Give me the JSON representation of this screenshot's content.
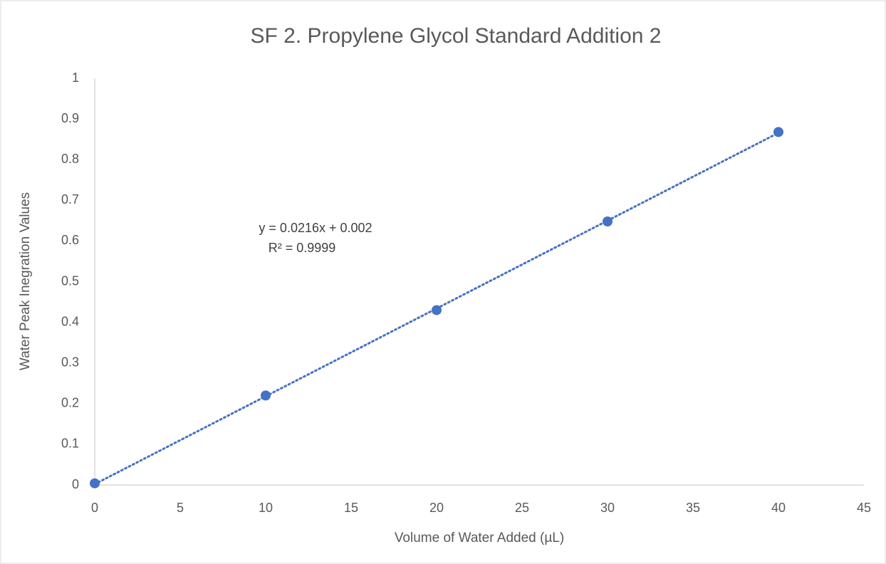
{
  "chart_data": {
    "type": "scatter",
    "title": "SF 2. Propylene Glycol Standard Addition 2",
    "x_label": "Volume of Water Added (µL)",
    "y_label": "Water Peak Inegration Values",
    "annotations": [
      "y = 0.0216x + 0.002",
      "R² = 0.9999"
    ],
    "series": [
      {
        "color": "#4472c4",
        "x": [
          0,
          10,
          20,
          30,
          40
        ],
        "values": [
          0.004,
          0.22,
          0.43,
          0.648,
          0.868
        ]
      }
    ],
    "trendline": {
      "slope": 0.0216,
      "intercept": 0.002,
      "style": "dotted"
    },
    "xlim": [
      0,
      45
    ],
    "xticks": [
      0,
      5,
      10,
      15,
      20,
      25,
      30,
      35,
      40,
      45
    ],
    "ylim": [
      0,
      1
    ],
    "yticks": [
      0,
      0.1,
      0.2,
      0.3,
      0.4,
      0.5,
      0.6,
      0.7,
      0.8,
      0.9,
      1
    ],
    "grid": false
  }
}
